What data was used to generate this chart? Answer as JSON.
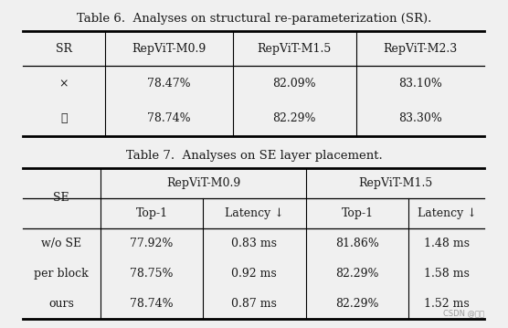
{
  "title6": "Table 6.  Analyses on structural re-parameterization (SR).",
  "title7": "Table 7.  Analyses on SE layer placement.",
  "table6_headers": [
    "SR",
    "RepViT-M0.9",
    "RepViT-M1.5",
    "RepViT-M2.3"
  ],
  "table6_rows": [
    [
      "×",
      "78.47%",
      "82.09%",
      "83.10%"
    ],
    [
      "✓",
      "78.74%",
      "82.29%",
      "83.30%"
    ]
  ],
  "table7_group_headers": [
    "RepViT-M0.9",
    "RepViT-M1.5"
  ],
  "table7_sub_headers": [
    "Top-1",
    "Latency ↓",
    "Top-1",
    "Latency ↓"
  ],
  "table7_rows": [
    [
      "w/o SE",
      "77.92%",
      "0.83 ms",
      "81.86%",
      "1.48 ms"
    ],
    [
      "per block",
      "78.75%",
      "0.92 ms",
      "82.29%",
      "1.58 ms"
    ],
    [
      "ours",
      "78.74%",
      "0.87 ms",
      "82.29%",
      "1.52 ms"
    ]
  ],
  "bg_color": "#f0f0f0",
  "text_color": "#1a1a1a",
  "watermark": "CSDN @叶丹",
  "title_fontsize": 9.5,
  "cell_fontsize": 9.0
}
